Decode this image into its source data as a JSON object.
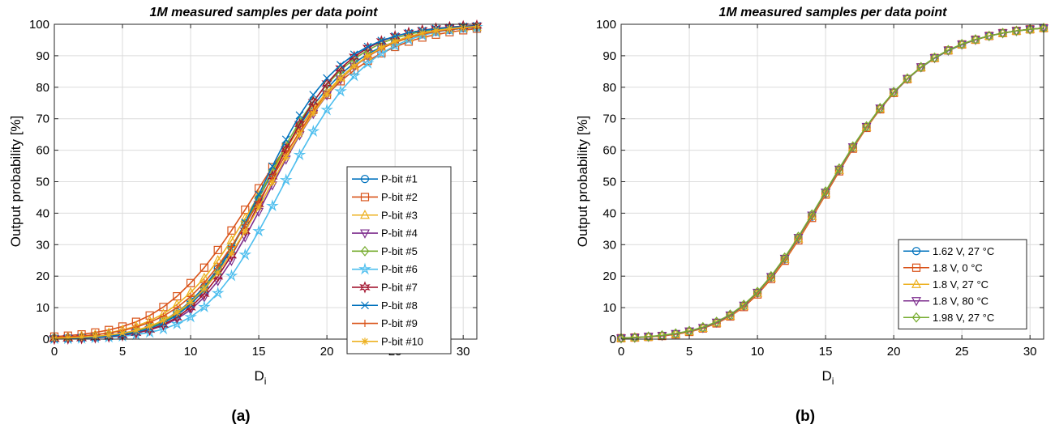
{
  "panels": [
    {
      "panel_label": "(a)",
      "chart_data": {
        "type": "line",
        "title": "1M measured samples per data point",
        "xlabel": "D",
        "xlabel_sub": "i",
        "ylabel": "Output probability [%]",
        "xlim": [
          0,
          31
        ],
        "ylim": [
          0,
          100
        ],
        "xticks": [
          0,
          5,
          10,
          15,
          20,
          25,
          30
        ],
        "yticks": [
          0,
          10,
          20,
          30,
          40,
          50,
          60,
          70,
          80,
          90,
          100
        ],
        "grid": true,
        "legend_position": "lower-right",
        "x": [
          0,
          1,
          2,
          3,
          4,
          5,
          6,
          7,
          8,
          9,
          10,
          11,
          12,
          13,
          14,
          15,
          16,
          17,
          18,
          19,
          20,
          21,
          22,
          23,
          24,
          25,
          26,
          27,
          28,
          29,
          30,
          31
        ],
        "series": [
          {
            "name": "P-bit #1",
            "color": "#0072BD",
            "marker": "circle",
            "values": [
              0.3,
              0.4,
              0.6,
              0.8,
              1.2,
              1.8,
              2.7,
              4.0,
              5.9,
              8.5,
              12.0,
              16.6,
              22.4,
              29.2,
              36.8,
              44.8,
              52.9,
              60.7,
              67.9,
              74.2,
              79.6,
              84.1,
              87.7,
              90.6,
              92.8,
              94.5,
              95.9,
              96.9,
              97.6,
              98.2,
              98.7,
              99.0
            ]
          },
          {
            "name": "P-bit #2",
            "color": "#D95319",
            "marker": "square",
            "values": [
              0.8,
              1.1,
              1.5,
              2.1,
              2.9,
              4.0,
              5.5,
              7.5,
              10.2,
              13.6,
              17.8,
              22.7,
              28.3,
              34.5,
              41.1,
              47.9,
              54.6,
              61.1,
              67.2,
              72.8,
              77.6,
              81.9,
              85.4,
              88.4,
              90.8,
              92.8,
              94.5,
              95.8,
              96.7,
              97.5,
              98.1,
              98.6
            ]
          },
          {
            "name": "P-bit #3",
            "color": "#EDB120",
            "marker": "triangle-up",
            "values": [
              0.5,
              0.7,
              1.0,
              1.4,
              2.0,
              2.9,
              4.1,
              5.8,
              8.0,
              11.0,
              14.8,
              19.4,
              25.0,
              31.4,
              38.4,
              45.7,
              53.2,
              60.3,
              67.1,
              73.2,
              78.5,
              83.1,
              86.9,
              89.9,
              92.3,
              94.2,
              95.7,
              96.8,
              97.6,
              98.3,
              98.8,
              99.1
            ]
          },
          {
            "name": "P-bit #4",
            "color": "#7E2F8E",
            "marker": "triangle-down",
            "values": [
              0.1,
              0.2,
              0.3,
              0.5,
              0.8,
              1.2,
              1.9,
              2.9,
              4.3,
              6.4,
              9.3,
              13.3,
              18.5,
              24.9,
              32.4,
              40.5,
              48.9,
              57.1,
              64.8,
              71.6,
              77.5,
              82.5,
              86.6,
              89.8,
              92.4,
              94.4,
              95.9,
              97.1,
              97.9,
              98.5,
              99.0,
              99.3
            ]
          },
          {
            "name": "P-bit #5",
            "color": "#77AC30",
            "marker": "diamond",
            "values": [
              0.2,
              0.3,
              0.5,
              0.7,
              1.1,
              1.6,
              2.5,
              3.7,
              5.5,
              8.0,
              11.5,
              16.0,
              21.8,
              28.7,
              36.5,
              44.9,
              53.5,
              61.7,
              69.1,
              75.5,
              80.9,
              85.4,
              89.0,
              91.8,
              94.0,
              95.6,
              96.8,
              97.7,
              98.4,
              98.9,
              99.3,
              99.5
            ]
          },
          {
            "name": "P-bit #6",
            "color": "#4DBEEE",
            "marker": "star",
            "values": [
              0.1,
              0.1,
              0.2,
              0.4,
              0.6,
              0.9,
              1.4,
              2.1,
              3.2,
              4.8,
              7.0,
              10.2,
              14.6,
              20.1,
              26.8,
              34.3,
              42.3,
              50.5,
              58.5,
              66.0,
              72.8,
              78.7,
              83.6,
              87.6,
              90.8,
              93.2,
              95.1,
              96.5,
              97.5,
              98.2,
              98.7,
              99.1
            ]
          },
          {
            "name": "P-bit #7",
            "color": "#A2142F",
            "marker": "hexagram",
            "values": [
              0.1,
              0.2,
              0.3,
              0.5,
              0.8,
              1.2,
              2.0,
              3.0,
              4.6,
              6.9,
              10.1,
              14.4,
              19.9,
              26.6,
              34.4,
              42.9,
              51.7,
              60.3,
              68.3,
              75.3,
              81.2,
              86.0,
              89.7,
              92.5,
              94.6,
              96.2,
              97.3,
              98.1,
              98.7,
              99.1,
              99.4,
              99.6
            ]
          },
          {
            "name": "P-bit #8",
            "color": "#0072BD",
            "marker": "x",
            "values": [
              0.1,
              0.2,
              0.4,
              0.6,
              0.9,
              1.4,
              2.2,
              3.4,
              5.1,
              7.6,
              11.0,
              15.6,
              21.5,
              28.7,
              37.0,
              45.9,
              54.9,
              63.4,
              71.1,
              77.6,
              82.9,
              87.1,
              90.4,
              92.9,
              94.8,
              96.2,
              97.3,
              98.0,
              98.6,
              99.0,
              99.3,
              99.5
            ]
          },
          {
            "name": "P-bit #9",
            "color": "#D95319",
            "marker": "plus",
            "values": [
              0.5,
              0.7,
              1.0,
              1.4,
              1.9,
              2.7,
              3.8,
              5.3,
              7.3,
              10.0,
              13.5,
              17.9,
              23.2,
              29.4,
              36.3,
              43.7,
              51.3,
              58.8,
              65.9,
              72.3,
              77.9,
              82.6,
              86.6,
              89.8,
              92.3,
              94.3,
              95.8,
              96.9,
              97.7,
              98.3,
              98.8,
              99.1
            ]
          },
          {
            "name": "P-bit #10",
            "color": "#EDB120",
            "marker": "asterisk",
            "values": [
              0.3,
              0.4,
              0.6,
              0.9,
              1.3,
              1.9,
              2.8,
              4.1,
              5.9,
              8.4,
              11.7,
              15.9,
              21.1,
              27.3,
              34.3,
              41.9,
              49.8,
              57.7,
              65.1,
              71.8,
              77.7,
              82.7,
              86.7,
              90.0,
              92.6,
              94.6,
              96.1,
              97.2,
              98.0,
              98.6,
              99.0,
              99.3
            ]
          }
        ]
      }
    },
    {
      "panel_label": "(b)",
      "chart_data": {
        "type": "line",
        "title": "1M measured samples per data point",
        "xlabel": "D",
        "xlabel_sub": "i",
        "ylabel": "Output probability [%]",
        "xlim": [
          0,
          31
        ],
        "ylim": [
          0,
          100
        ],
        "xticks": [
          0,
          5,
          10,
          15,
          20,
          25,
          30
        ],
        "yticks": [
          0,
          10,
          20,
          30,
          40,
          50,
          60,
          70,
          80,
          90,
          100
        ],
        "grid": true,
        "legend_position": "lower-right",
        "x": [
          0,
          1,
          2,
          3,
          4,
          5,
          6,
          7,
          8,
          9,
          10,
          11,
          12,
          13,
          14,
          15,
          16,
          17,
          18,
          19,
          20,
          21,
          22,
          23,
          24,
          25,
          26,
          27,
          28,
          29,
          30,
          31
        ],
        "series": [
          {
            "name": "1.62 V, 27 °C",
            "color": "#0072BD",
            "marker": "circle",
            "values": [
              0.3,
              0.5,
              0.7,
              1.1,
              1.6,
              2.4,
              3.5,
              5.1,
              7.4,
              10.5,
              14.6,
              19.5,
              25.3,
              31.8,
              38.9,
              46.2,
              53.6,
              60.7,
              67.2,
              73.1,
              78.2,
              82.6,
              86.2,
              89.2,
              91.6,
              93.5,
              95.1,
              96.3,
              97.2,
              97.9,
              98.4,
              98.8
            ]
          },
          {
            "name": "1.8 V, 0 °C",
            "color": "#D95319",
            "marker": "square",
            "values": [
              0.3,
              0.5,
              0.7,
              1.0,
              1.5,
              2.3,
              3.4,
              5.0,
              7.2,
              10.2,
              14.2,
              19.1,
              24.9,
              31.4,
              38.5,
              45.9,
              53.3,
              60.5,
              67.1,
              73.0,
              78.2,
              82.6,
              86.3,
              89.3,
              91.7,
              93.6,
              95.1,
              96.3,
              97.2,
              97.9,
              98.4,
              98.8
            ]
          },
          {
            "name": "1.8 V, 27 °C",
            "color": "#EDB120",
            "marker": "triangle-up",
            "values": [
              0.3,
              0.5,
              0.7,
              1.1,
              1.6,
              2.4,
              3.5,
              5.2,
              7.4,
              10.5,
              14.6,
              19.5,
              25.3,
              31.9,
              39.0,
              46.3,
              53.7,
              60.8,
              67.3,
              73.2,
              78.3,
              82.7,
              86.3,
              89.3,
              91.7,
              93.6,
              95.1,
              96.3,
              97.2,
              97.9,
              98.4,
              98.8
            ]
          },
          {
            "name": "1.8 V, 80 °C",
            "color": "#7E2F8E",
            "marker": "triangle-down",
            "values": [
              0.3,
              0.5,
              0.8,
              1.1,
              1.7,
              2.5,
              3.6,
              5.3,
              7.6,
              10.7,
              14.8,
              19.8,
              25.6,
              32.2,
              39.3,
              46.6,
              53.9,
              61.0,
              67.5,
              73.3,
              78.4,
              82.7,
              86.4,
              89.3,
              91.7,
              93.6,
              95.1,
              96.3,
              97.2,
              97.9,
              98.4,
              98.8
            ]
          },
          {
            "name": "1.98 V, 27 °C",
            "color": "#77AC30",
            "marker": "diamond",
            "values": [
              0.3,
              0.5,
              0.8,
              1.2,
              1.8,
              2.6,
              3.8,
              5.5,
              7.8,
              10.9,
              15.0,
              20.0,
              25.9,
              32.5,
              39.6,
              46.9,
              54.2,
              61.2,
              67.6,
              73.4,
              78.5,
              82.8,
              86.4,
              89.4,
              91.8,
              93.7,
              95.2,
              96.3,
              97.2,
              97.9,
              98.4,
              98.8
            ]
          }
        ]
      }
    }
  ]
}
